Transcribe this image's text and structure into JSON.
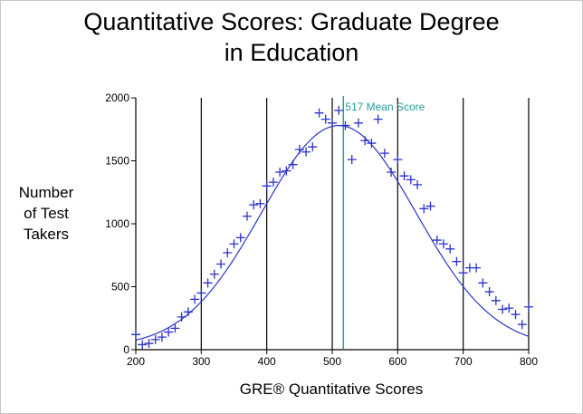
{
  "chart_data": {
    "type": "scatter",
    "title_line1": "Quantitative Scores: Graduate Degree",
    "title_line2": "in Education",
    "ylabel_lines": [
      "Number",
      "of Test",
      "Takers"
    ],
    "xlabel": "GRE® Quantitative Scores",
    "xlim": [
      200,
      800
    ],
    "ylim": [
      0,
      2000
    ],
    "x_ticks": [
      200,
      300,
      400,
      500,
      600,
      700,
      800
    ],
    "y_ticks": [
      0,
      500,
      1000,
      1500,
      2000
    ],
    "vertical_gridlines": [
      300,
      400,
      500,
      600,
      700,
      800
    ],
    "mean": {
      "x": 517,
      "label": "517 Mean Score",
      "color": "#2a9d9d"
    },
    "series": [
      {
        "marker": "+",
        "color": "#2b33cc",
        "points": [
          [
            200,
            120
          ],
          [
            210,
            40
          ],
          [
            220,
            50
          ],
          [
            230,
            80
          ],
          [
            240,
            100
          ],
          [
            250,
            140
          ],
          [
            260,
            170
          ],
          [
            270,
            260
          ],
          [
            280,
            300
          ],
          [
            290,
            400
          ],
          [
            300,
            450
          ],
          [
            310,
            530
          ],
          [
            320,
            600
          ],
          [
            330,
            680
          ],
          [
            340,
            770
          ],
          [
            350,
            840
          ],
          [
            360,
            890
          ],
          [
            370,
            1060
          ],
          [
            380,
            1150
          ],
          [
            390,
            1160
          ],
          [
            400,
            1300
          ],
          [
            410,
            1330
          ],
          [
            420,
            1410
          ],
          [
            430,
            1420
          ],
          [
            440,
            1470
          ],
          [
            450,
            1590
          ],
          [
            460,
            1570
          ],
          [
            470,
            1610
          ],
          [
            480,
            1880
          ],
          [
            490,
            1830
          ],
          [
            500,
            1800
          ],
          [
            510,
            1900
          ],
          [
            520,
            1780
          ],
          [
            530,
            1510
          ],
          [
            540,
            1800
          ],
          [
            550,
            1660
          ],
          [
            560,
            1640
          ],
          [
            570,
            1830
          ],
          [
            580,
            1560
          ],
          [
            590,
            1410
          ],
          [
            600,
            1510
          ],
          [
            610,
            1380
          ],
          [
            620,
            1350
          ],
          [
            630,
            1310
          ],
          [
            640,
            1120
          ],
          [
            650,
            1140
          ],
          [
            660,
            870
          ],
          [
            670,
            840
          ],
          [
            680,
            800
          ],
          [
            690,
            700
          ],
          [
            700,
            610
          ],
          [
            710,
            650
          ],
          [
            720,
            650
          ],
          [
            730,
            530
          ],
          [
            740,
            460
          ],
          [
            750,
            390
          ],
          [
            760,
            320
          ],
          [
            770,
            330
          ],
          [
            780,
            280
          ],
          [
            790,
            200
          ],
          [
            800,
            340
          ]
        ]
      },
      {
        "type": "line",
        "color": "#2b33cc",
        "fit": {
          "peak_y": 1780,
          "mean_x": 510,
          "sd": 118,
          "offset": 20
        }
      }
    ]
  }
}
